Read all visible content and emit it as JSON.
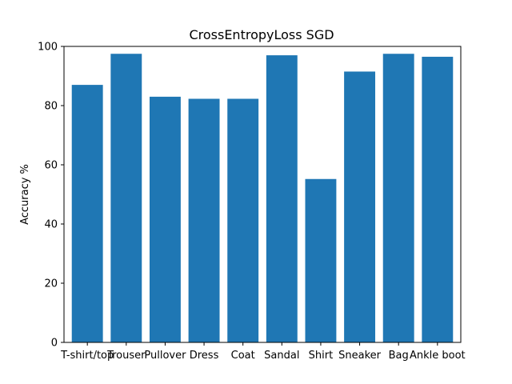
{
  "chart_data": {
    "type": "bar",
    "title": "CrossEntropyLoss SGD",
    "xlabel": "",
    "ylabel": "Accuracy %",
    "categories": [
      "T-shirt/top",
      "Trouser",
      "Pullover",
      "Dress",
      "Coat",
      "Sandal",
      "Shirt",
      "Sneaker",
      "Bag",
      "Ankle boot"
    ],
    "values": [
      87,
      97.5,
      83,
      82.3,
      82.3,
      97,
      55.2,
      91.5,
      97.5,
      96.5
    ],
    "ylim": [
      0,
      100
    ],
    "yticks": [
      0,
      20,
      40,
      60,
      80,
      100
    ],
    "bar_color": "#1f77b4",
    "grid": false,
    "legend": "none"
  }
}
